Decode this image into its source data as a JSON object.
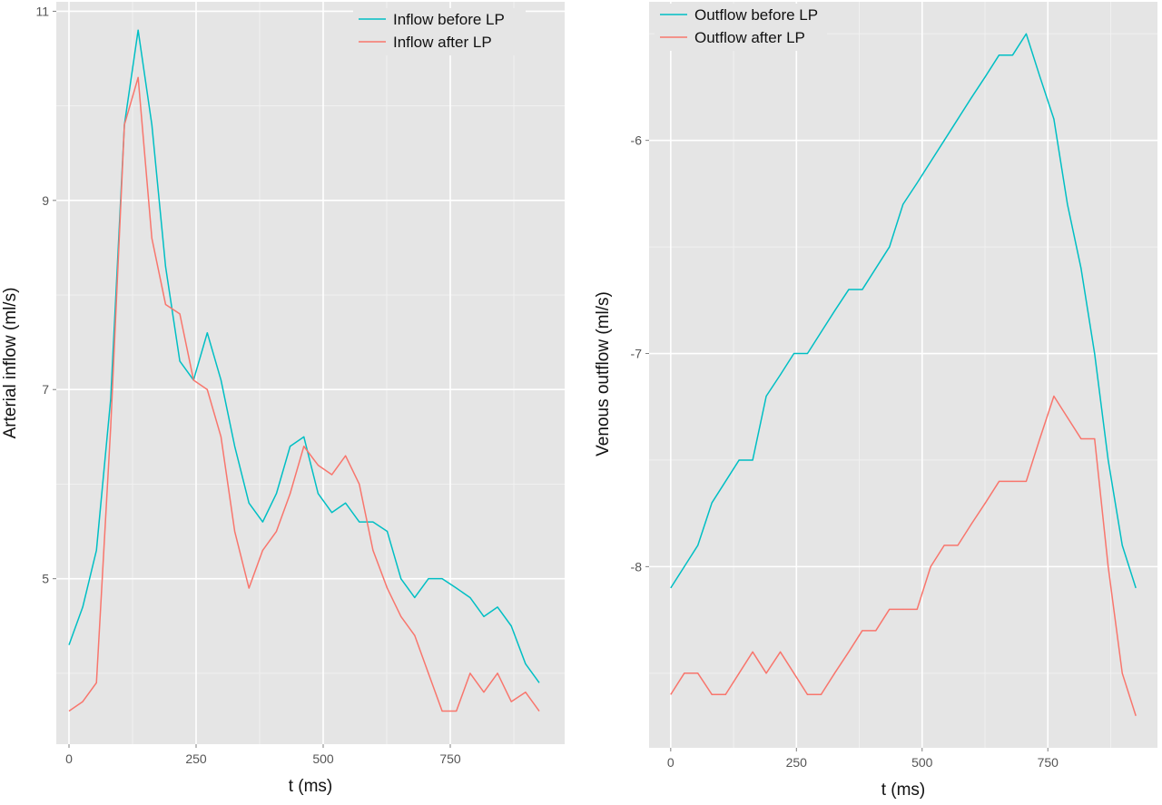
{
  "chart_data": [
    {
      "type": "line",
      "xlabel": "t (ms)",
      "ylabel": "Arterial inflow (ml/s)",
      "xlim": [
        -25,
        975
      ],
      "ylim": [
        3.25,
        11.1
      ],
      "x_ticks": [
        0,
        250,
        500,
        750
      ],
      "x_tick_labels": [
        "0",
        "250",
        "500",
        "750"
      ],
      "y_ticks": [
        5,
        7,
        9,
        11
      ],
      "y_tick_labels": [
        "5",
        "7",
        "9",
        "11"
      ],
      "grid": true,
      "legend_position": "top-right",
      "series": [
        {
          "name": "Inflow before LP",
          "color": "#00BFC4",
          "x": [
            0,
            27,
            54,
            82,
            109,
            136,
            163,
            190,
            218,
            245,
            272,
            299,
            326,
            354,
            381,
            408,
            435,
            462,
            490,
            517,
            544,
            571,
            598,
            626,
            653,
            680,
            707,
            734,
            762,
            789,
            816,
            843,
            870,
            898,
            925
          ],
          "y": [
            4.3,
            4.7,
            5.3,
            6.9,
            9.8,
            10.8,
            9.8,
            8.3,
            7.3,
            7.1,
            7.6,
            7.1,
            6.4,
            5.8,
            5.6,
            5.9,
            6.4,
            6.5,
            5.9,
            5.7,
            5.8,
            5.6,
            5.6,
            5.5,
            5.0,
            4.8,
            5.0,
            5.0,
            4.9,
            4.8,
            4.6,
            4.7,
            4.5,
            4.1,
            3.9
          ]
        },
        {
          "name": "Inflow after LP",
          "color": "#F8766D",
          "x": [
            0,
            27,
            54,
            82,
            109,
            136,
            163,
            190,
            218,
            245,
            272,
            299,
            326,
            354,
            381,
            408,
            435,
            462,
            490,
            517,
            544,
            571,
            598,
            626,
            653,
            680,
            707,
            734,
            762,
            789,
            816,
            843,
            870,
            898,
            925
          ],
          "y": [
            3.6,
            3.7,
            3.9,
            6.6,
            9.8,
            10.3,
            8.6,
            7.9,
            7.8,
            7.1,
            7.0,
            6.5,
            5.5,
            4.9,
            5.3,
            5.5,
            5.9,
            6.4,
            6.2,
            6.1,
            6.3,
            6.0,
            5.3,
            4.9,
            4.6,
            4.4,
            4.0,
            3.6,
            3.6,
            4.0,
            3.8,
            4.0,
            3.7,
            3.8,
            3.6
          ]
        }
      ]
    },
    {
      "type": "line",
      "xlabel": "t (ms)",
      "ylabel": "Venous outflow (ml/s)",
      "xlim": [
        -43,
        968
      ],
      "ylim": [
        -8.85,
        -5.35
      ],
      "x_ticks": [
        0,
        250,
        500,
        750
      ],
      "x_tick_labels": [
        "0",
        "250",
        "500",
        "750"
      ],
      "y_ticks": [
        -8,
        -7,
        -6
      ],
      "y_tick_labels": [
        "-8",
        "-7",
        "-6"
      ],
      "grid": true,
      "legend_position": "top-left",
      "series": [
        {
          "name": "Outflow before LP",
          "color": "#00BFC4",
          "x": [
            0,
            27,
            54,
            82,
            109,
            136,
            163,
            190,
            218,
            245,
            272,
            299,
            326,
            354,
            381,
            408,
            435,
            462,
            490,
            517,
            544,
            571,
            598,
            626,
            653,
            680,
            707,
            734,
            762,
            789,
            816,
            843,
            870,
            898,
            925
          ],
          "y": [
            -8.1,
            -8.0,
            -7.9,
            -7.7,
            -7.6,
            -7.5,
            -7.5,
            -7.2,
            -7.1,
            -7.0,
            -7.0,
            -6.9,
            -6.8,
            -6.7,
            -6.7,
            -6.6,
            -6.5,
            -6.3,
            -6.2,
            -6.1,
            -6.0,
            -5.9,
            -5.8,
            -5.7,
            -5.6,
            -5.6,
            -5.5,
            -5.7,
            -5.9,
            -6.3,
            -6.6,
            -7.0,
            -7.5,
            -7.9,
            -8.1
          ]
        },
        {
          "name": "Outflow after LP",
          "color": "#F8766D",
          "x": [
            0,
            27,
            54,
            82,
            109,
            136,
            163,
            190,
            218,
            245,
            272,
            299,
            326,
            354,
            381,
            408,
            435,
            462,
            490,
            517,
            544,
            571,
            598,
            626,
            653,
            680,
            707,
            734,
            762,
            789,
            816,
            843,
            870,
            898,
            925
          ],
          "y": [
            -8.6,
            -8.5,
            -8.5,
            -8.6,
            -8.6,
            -8.5,
            -8.4,
            -8.5,
            -8.4,
            -8.5,
            -8.6,
            -8.6,
            -8.5,
            -8.4,
            -8.3,
            -8.3,
            -8.2,
            -8.2,
            -8.2,
            -8.0,
            -7.9,
            -7.9,
            -7.8,
            -7.7,
            -7.6,
            -7.6,
            -7.6,
            -7.4,
            -7.2,
            -7.3,
            -7.4,
            -7.4,
            -8.0,
            -8.5,
            -8.7
          ]
        }
      ]
    }
  ]
}
